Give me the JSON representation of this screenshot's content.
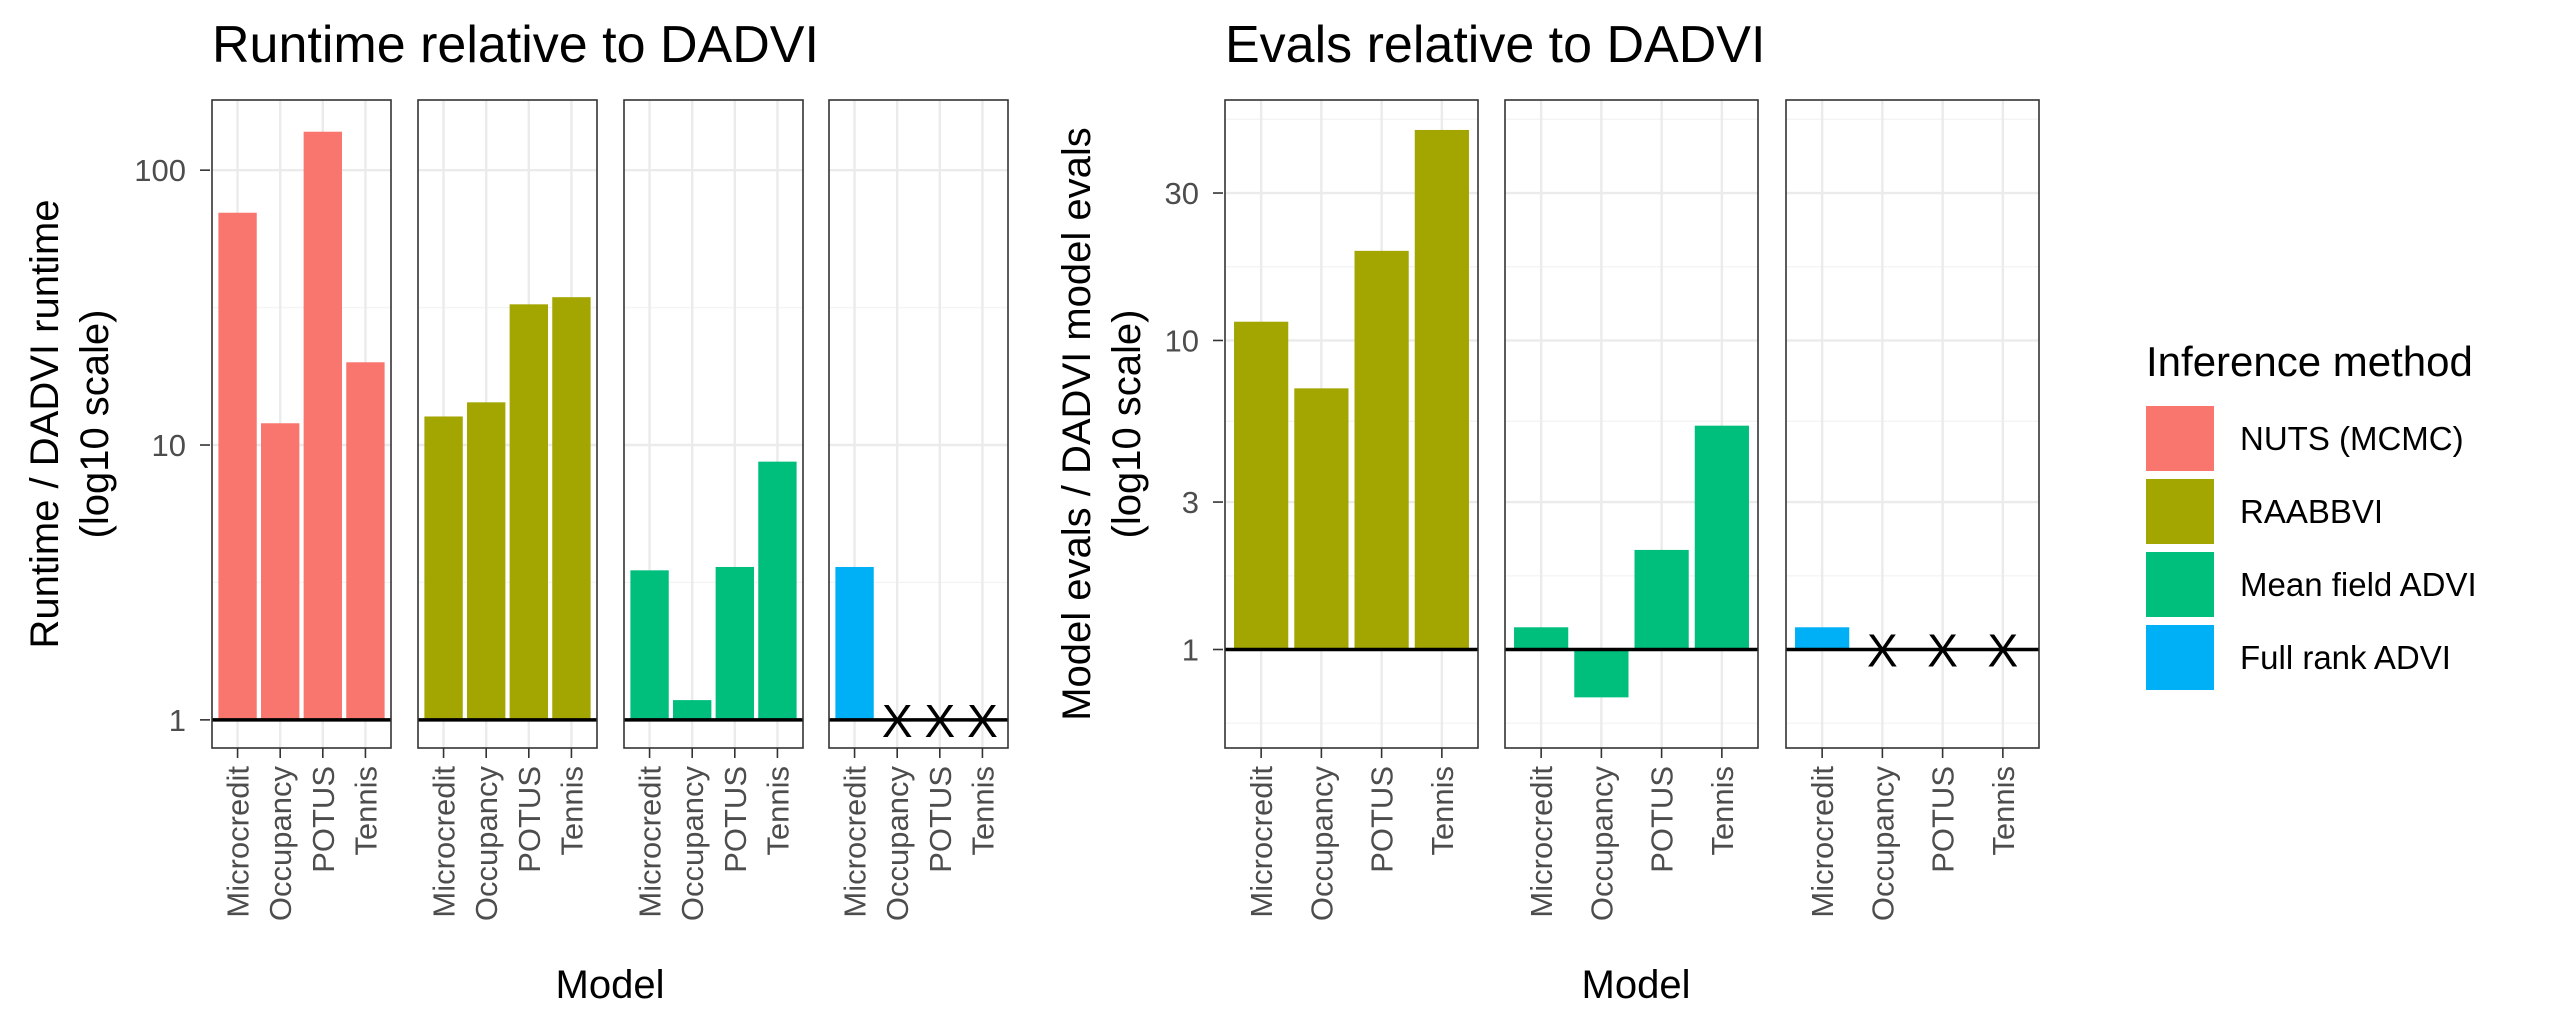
{
  "figure": {
    "legend": {
      "title": "Inference method",
      "items": [
        {
          "label": "NUTS (MCMC)",
          "color": "#F8766D"
        },
        {
          "label": "RAABBVI",
          "color": "#A3A500"
        },
        {
          "label": "Mean field ADVI",
          "color": "#00BF7D"
        },
        {
          "label": "Full rank ADVI",
          "color": "#00B0F6"
        }
      ]
    },
    "missing_symbol": "X"
  },
  "chart_data": [
    {
      "type": "bar",
      "title": "Runtime relative to DADVI",
      "xlabel": "Model",
      "ylabel": [
        "Runtime / DADVI runtime",
        "(log10 scale)"
      ],
      "yscale": "log10",
      "ylim": [
        0.79,
        180
      ],
      "yticks": [
        1,
        10,
        100
      ],
      "ytick_labels": [
        "1",
        "10",
        "100"
      ],
      "reference_line": 1,
      "grid": true,
      "legend_position": "right",
      "categories": [
        "Microcredit",
        "Occupancy",
        "POTUS",
        "Tennis"
      ],
      "series": [
        {
          "name": "NUTS (MCMC)",
          "values": [
            70,
            12,
            138,
            20
          ]
        },
        {
          "name": "RAABBVI",
          "values": [
            12.7,
            14.3,
            32.5,
            34.5
          ]
        },
        {
          "name": "Mean field ADVI",
          "values": [
            3.5,
            1.18,
            3.6,
            8.7
          ]
        },
        {
          "name": "Full rank ADVI",
          "values": [
            3.6,
            null,
            null,
            null
          ]
        }
      ]
    },
    {
      "type": "bar",
      "title": "Evals relative to DADVI",
      "xlabel": "Model",
      "ylabel": [
        "Model evals / DADVI model evals",
        "(log10 scale)"
      ],
      "yscale": "log10",
      "ylim": [
        0.48,
        60
      ],
      "yticks": [
        1,
        3,
        10,
        30
      ],
      "ytick_labels": [
        "1",
        "3",
        "10",
        "30"
      ],
      "reference_line": 1,
      "grid": true,
      "legend_position": "right",
      "categories": [
        "Microcredit",
        "Occupancy",
        "POTUS",
        "Tennis"
      ],
      "series": [
        {
          "name": "RAABBVI",
          "values": [
            11.5,
            7.0,
            19.5,
            48
          ]
        },
        {
          "name": "Mean field ADVI",
          "values": [
            1.18,
            0.7,
            2.1,
            5.3
          ]
        },
        {
          "name": "Full rank ADVI",
          "values": [
            1.18,
            null,
            null,
            null
          ]
        }
      ]
    }
  ]
}
